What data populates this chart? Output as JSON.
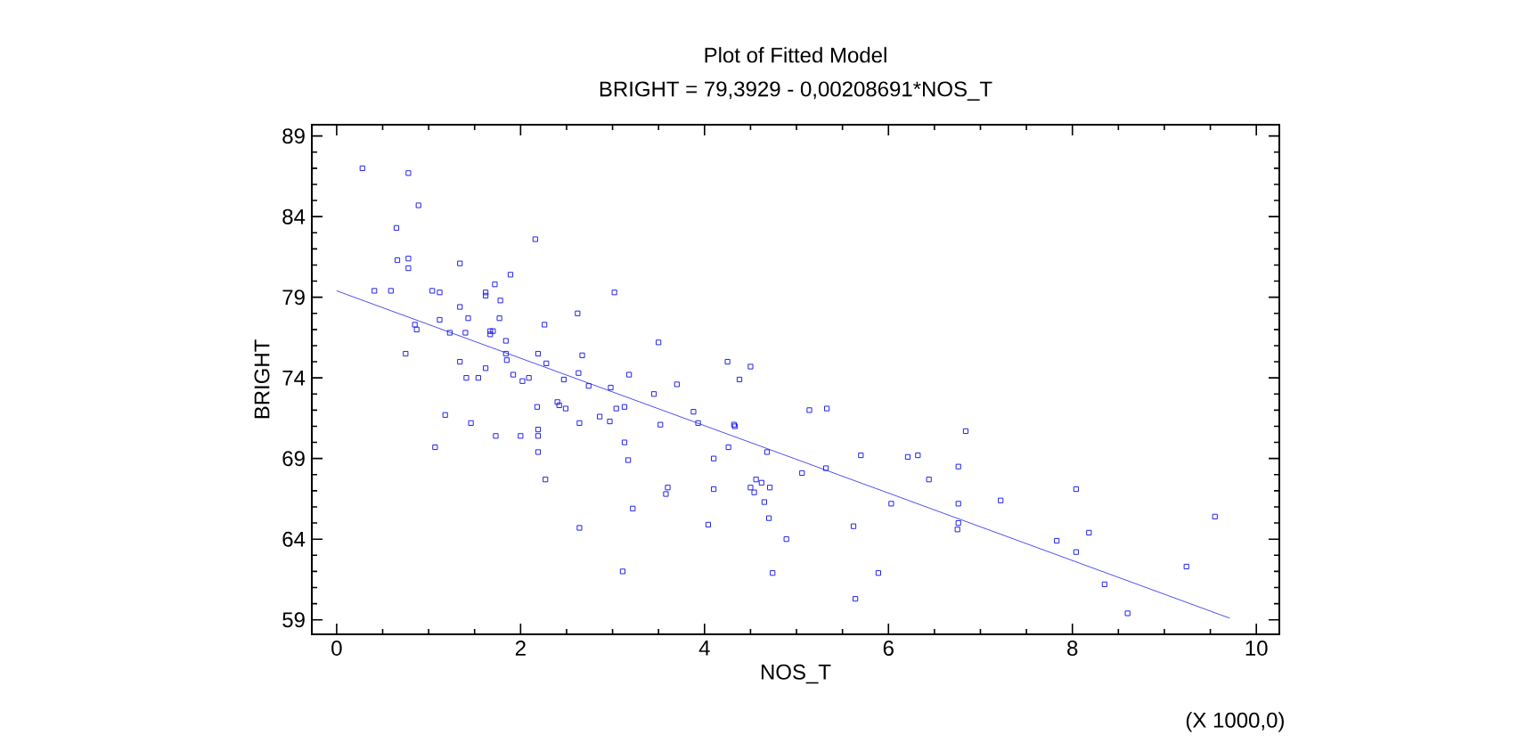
{
  "chart_data": {
    "type": "scatter",
    "title": "Plot of Fitted Model",
    "subtitle": "BRIGHT = 79,3929 - 0,00208691*NOS_T",
    "xlabel": "NOS_T",
    "ylabel": "BRIGHT",
    "annotations": [
      "(X 1000,0)"
    ],
    "xlim": [
      -0.27,
      10.25
    ],
    "ylim": [
      58.1,
      89.7
    ],
    "xticks": [
      0,
      2,
      4,
      6,
      8,
      10
    ],
    "yticks": [
      59,
      64,
      69,
      74,
      79,
      84,
      89
    ],
    "series": [
      {
        "color": "#2222ee",
        "marker": "square",
        "x": [
          0.28,
          0.78,
          0.89,
          0.65,
          2.16,
          0.66,
          0.78,
          1.34,
          0.78,
          1.89,
          0.41,
          0.59,
          1.04,
          1.12,
          1.62,
          1.62,
          1.72,
          1.78,
          3.02,
          1.34,
          2.62,
          0.85,
          0.87,
          1.12,
          1.43,
          1.77,
          2.26,
          1.23,
          1.4,
          1.67,
          1.7,
          1.67,
          1.84,
          0.75,
          1.84,
          1.85,
          1.34,
          2.19,
          2.67,
          2.28,
          1.62,
          2.63,
          1.92,
          2.09,
          1.41,
          1.54,
          2.02,
          2.47,
          2.74,
          2.98,
          3.18,
          2.18,
          2.4,
          2.42,
          2.49,
          3.04,
          3.13,
          2.86,
          1.18,
          2.64,
          2.97,
          1.46,
          2.19,
          2.19,
          1.73,
          2.0,
          3.13,
          3.17,
          2.19,
          1.07,
          2.27,
          3.22,
          2.64,
          3.11,
          3.5,
          4.25,
          4.5,
          4.38,
          3.7,
          3.45,
          3.88,
          3.93,
          3.52,
          4.32,
          4.33,
          5.14,
          5.33,
          4.26,
          4.68,
          4.1,
          5.7,
          6.21,
          6.32,
          6.76,
          5.32,
          5.06,
          6.44,
          4.56,
          4.62,
          3.6,
          4.5,
          4.71,
          4.1,
          4.54,
          3.58,
          4.65,
          6.03,
          6.76,
          6.76,
          6.75,
          4.7,
          4.04,
          5.62,
          4.89,
          4.74,
          5.89,
          5.64,
          6.84,
          7.22,
          8.04,
          8.18,
          7.83,
          8.04,
          8.35,
          8.6,
          9.24,
          9.55
        ],
        "values": [
          87.0,
          86.7,
          84.7,
          83.3,
          82.6,
          81.3,
          81.4,
          81.1,
          80.8,
          80.4,
          79.4,
          79.4,
          79.4,
          79.3,
          79.3,
          79.1,
          79.8,
          78.8,
          79.3,
          78.4,
          78.0,
          77.3,
          77.0,
          77.6,
          77.7,
          77.7,
          77.3,
          76.8,
          76.8,
          76.9,
          76.9,
          76.7,
          76.3,
          75.5,
          75.5,
          75.1,
          75.0,
          75.5,
          75.4,
          74.9,
          74.6,
          74.3,
          74.2,
          74.0,
          74.0,
          74.0,
          73.8,
          73.9,
          73.5,
          73.4,
          74.2,
          72.2,
          72.5,
          72.3,
          72.1,
          72.1,
          72.2,
          71.6,
          71.7,
          71.2,
          71.3,
          71.2,
          70.8,
          70.4,
          70.4,
          70.4,
          70.0,
          68.9,
          69.4,
          69.7,
          67.7,
          65.9,
          64.7,
          62.0,
          76.2,
          75.0,
          74.7,
          73.9,
          73.6,
          73.0,
          71.9,
          71.2,
          71.1,
          71.1,
          71.0,
          72.0,
          72.1,
          69.7,
          69.4,
          69.0,
          69.2,
          69.1,
          69.2,
          68.5,
          68.4,
          68.1,
          67.7,
          67.7,
          67.5,
          67.2,
          67.2,
          67.2,
          67.1,
          66.9,
          66.8,
          66.3,
          66.2,
          66.2,
          65.0,
          64.6,
          65.3,
          64.9,
          64.8,
          64.0,
          61.9,
          61.9,
          60.3,
          70.7,
          66.4,
          67.1,
          64.4,
          63.9,
          63.2,
          61.2,
          59.4,
          62.3,
          65.4
        ]
      },
      {
        "type": "line",
        "color": "#2222ee",
        "marker": "none",
        "x": [
          0,
          9.71
        ],
        "values": [
          79.4,
          59.1
        ]
      }
    ]
  }
}
